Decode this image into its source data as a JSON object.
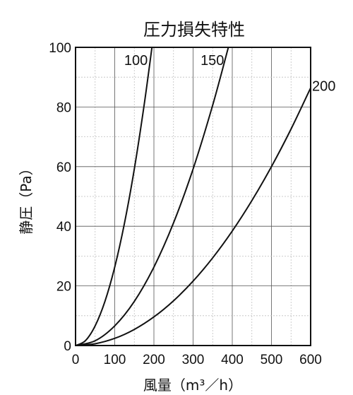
{
  "chart_data": {
    "type": "line",
    "title": "圧力損失特性",
    "xlabel": "風量（m³／h）",
    "ylabel": "静圧（Pa）",
    "xlim": [
      0,
      600
    ],
    "ylim": [
      0,
      100
    ],
    "xticks": [
      0,
      100,
      200,
      300,
      400,
      500,
      600
    ],
    "yticks": [
      0,
      20,
      40,
      60,
      80,
      100
    ],
    "grid": true,
    "series": [
      {
        "name": "100",
        "x": [
          0,
          25,
          50,
          75,
          100,
          125,
          150,
          175,
          195
        ],
        "y": [
          0,
          1.6,
          6.6,
          14.8,
          26.3,
          41.1,
          59.2,
          80.6,
          100
        ]
      },
      {
        "name": "150",
        "x": [
          0,
          50,
          100,
          150,
          200,
          250,
          300,
          350,
          390
        ],
        "y": [
          0,
          1.6,
          6.6,
          14.8,
          26.3,
          41.1,
          59.2,
          80.6,
          100
        ]
      },
      {
        "name": "200",
        "x": [
          0,
          50,
          100,
          150,
          200,
          250,
          300,
          350,
          400,
          450,
          500,
          550,
          600
        ],
        "y": [
          0,
          0.6,
          2.4,
          5.4,
          9.6,
          15.0,
          21.6,
          29.4,
          38.4,
          48.6,
          60.0,
          72.6,
          86.4
        ]
      }
    ]
  }
}
